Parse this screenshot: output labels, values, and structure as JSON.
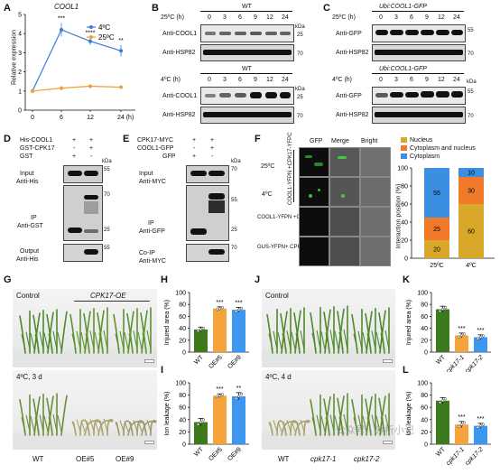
{
  "panels": {
    "A": {
      "label": "A",
      "gene": "COOL1",
      "ylabel": "Relative expression",
      "xticks": [
        "0",
        "6",
        "12",
        "24 (h)"
      ],
      "yticks": [
        "0",
        "1",
        "2",
        "3",
        "4",
        "5"
      ],
      "legend": [
        "4ºC",
        "25ºC"
      ],
      "sig": [
        "***",
        "****",
        "**"
      ],
      "colors": {
        "cold": "#3a7bd5",
        "warm": "#f0a032"
      }
    },
    "B": {
      "label": "B",
      "top": {
        "title": "WT",
        "temp": "25ºC (h)",
        "times": [
          "0",
          "3",
          "6",
          "9",
          "12",
          "24"
        ],
        "row1": "Anti-COOL1",
        "row2": "Anti-HSP82",
        "kda": "kDa",
        "m1": "25",
        "m2": "70"
      },
      "bottom": {
        "title": "WT",
        "temp": "4ºC (h)",
        "times": [
          "0",
          "3",
          "6",
          "9",
          "12",
          "24"
        ],
        "row1": "Anti-COOL1",
        "row2": "Anti-HSP82",
        "kda": "kDa",
        "m1": "25",
        "m2": "70"
      }
    },
    "C": {
      "label": "C",
      "top": {
        "title": "Ubi:COOL1-GFP",
        "temp": "25ºC (h)",
        "times": [
          "0",
          "3",
          "6",
          "9",
          "12",
          "24"
        ],
        "row1": "Anti-GFP",
        "row2": "Anti-HSP82",
        "m1": "55",
        "m2": "70"
      },
      "bottom": {
        "title": "Ubi:COOL1-GFP",
        "temp": "4ºC (h)",
        "times": [
          "0",
          "3",
          "6",
          "9",
          "12",
          "24"
        ],
        "row1": "Anti-GFP",
        "row2": "Anti-HSP82",
        "kda": "kDa",
        "m1": "55",
        "m2": "70"
      }
    },
    "D": {
      "label": "D",
      "rows": [
        {
          "name": "His-COOL1",
          "marks": [
            "+",
            "+"
          ]
        },
        {
          "name": "GST-CPK17",
          "marks": [
            "-",
            "+"
          ]
        },
        {
          "name": "GST",
          "marks": [
            "+",
            "-"
          ]
        }
      ],
      "kda": "kDa",
      "input": [
        "Input",
        "Anti-His"
      ],
      "ip": [
        "IP",
        "Anti-GST"
      ],
      "output": [
        "Output",
        "Anti-His"
      ],
      "markers": [
        "55",
        "70",
        "25",
        "55"
      ]
    },
    "E": {
      "label": "E",
      "rows": [
        {
          "name": "CPK17-MYC",
          "marks": [
            "+",
            "+"
          ]
        },
        {
          "name": "COOL1-GFP",
          "marks": [
            "-",
            "+"
          ]
        },
        {
          "name": "GFP",
          "marks": [
            "+",
            "-"
          ]
        }
      ],
      "kda": "kDa",
      "input": [
        "Input",
        "Anti-MYC"
      ],
      "ip": [
        "IP",
        "Anti-GFP"
      ],
      "coip": [
        "Co-IP",
        "Anti-MYC"
      ],
      "markers": [
        "70",
        "55",
        "25",
        "70"
      ]
    },
    "F": {
      "label": "F",
      "cols": [
        "GFP",
        "Merge",
        "Bright"
      ],
      "temp_top": "25ºC",
      "temp_bottom": "4ºC",
      "construct1": "COOL1-YFPN +CPK17-YFPC",
      "construct2": "COOL1-YFPN +GUS-YFPC",
      "construct3": "GUS-YFPN+ CPK17-YFPC",
      "legend": [
        "Nucleus",
        "Cytoplasm and nucleus",
        "Cytoplasm"
      ],
      "ylabel": "Interaction position (%)",
      "yticks": [
        "0",
        "20",
        "40",
        "60",
        "80",
        "100"
      ],
      "xcats": [
        "25ºC",
        "4ºC"
      ],
      "colors": {
        "nucleus": "#d9a82b",
        "both": "#f07a2a",
        "cyto": "#3a8fe0"
      }
    },
    "G": {
      "label": "G",
      "control": "Control",
      "treat": "4ºC, 3 d",
      "oe": "CPK17-OE",
      "xlabels": [
        "WT",
        "OE#5",
        "OE#9"
      ]
    },
    "H": {
      "label": "H",
      "ylabel": "Injured area (%)",
      "yticks": [
        "0",
        "20",
        "40",
        "60",
        "80",
        "100"
      ],
      "xlabels": [
        "WT",
        "OE#5",
        "OE#9"
      ],
      "sig": [
        "***",
        "***"
      ]
    },
    "I": {
      "label": "I",
      "ylabel": "Ion leakage (%)",
      "yticks": [
        "0",
        "20",
        "40",
        "60",
        "80",
        "100"
      ],
      "xlabels": [
        "WT",
        "OE#5",
        "OE#9"
      ],
      "sig": [
        "***",
        "**"
      ]
    },
    "J": {
      "label": "J",
      "control": "Control",
      "treat": "4ºC, 4 d",
      "xlabels": [
        "WT",
        "cpk17-1",
        "cpk17-2"
      ]
    },
    "K": {
      "label": "K",
      "ylabel": "Injured area (%)",
      "yticks": [
        "0",
        "20",
        "40",
        "60",
        "80",
        "100"
      ],
      "xlabels": [
        "WT",
        "cpk17-1",
        "cpk17-2"
      ],
      "sig": [
        "***",
        "***"
      ]
    },
    "L": {
      "label": "L",
      "ylabel": "Ion leakage (%)",
      "yticks": [
        "0",
        "20",
        "40",
        "60",
        "80",
        "100"
      ],
      "xlabels": [
        "WT",
        "cpk17-1",
        "cpk17-2"
      ],
      "sig": [
        "***",
        "***"
      ]
    }
  },
  "watermark": "公众号 · 分析小记",
  "chart_data": [
    {
      "panel": "A",
      "type": "line",
      "ylabel": "Relative expression",
      "x": [
        0,
        6,
        12,
        24
      ],
      "ylim": [
        0,
        5
      ],
      "series": [
        {
          "name": "4ºC",
          "values": [
            1.0,
            4.2,
            3.6,
            3.1
          ],
          "errors": [
            0.05,
            0.35,
            0.2,
            0.3
          ],
          "color": "#3a7bd5"
        },
        {
          "name": "25ºC",
          "values": [
            1.0,
            1.15,
            1.25,
            1.2
          ],
          "errors": [
            0.05,
            0.1,
            0.1,
            0.08
          ],
          "color": "#f0a032"
        }
      ]
    },
    {
      "panel": "F",
      "type": "bar",
      "stacked": true,
      "ylabel": "Interaction position (%)",
      "categories": [
        "25ºC",
        "4ºC"
      ],
      "ylim": [
        0,
        100
      ],
      "series": [
        {
          "name": "Nucleus",
          "values": [
            20,
            60
          ],
          "color": "#d9a82b"
        },
        {
          "name": "Cytoplasm and nucleus",
          "values": [
            25,
            30
          ],
          "color": "#f07a2a"
        },
        {
          "name": "Cytoplasm",
          "values": [
            55,
            10
          ],
          "color": "#3a8fe0"
        }
      ],
      "data_labels": [
        [
          "20",
          "25",
          "55"
        ],
        [
          "60",
          "30",
          "10"
        ]
      ]
    },
    {
      "panel": "H",
      "type": "bar",
      "ylabel": "Injured area (%)",
      "categories": [
        "WT",
        "OE#5",
        "OE#9"
      ],
      "values": [
        38,
        73,
        71
      ],
      "errors": [
        4,
        3,
        4
      ],
      "colors": [
        "#3d7a1e",
        "#f4a43a",
        "#3d97f0"
      ],
      "ylim": [
        0,
        100
      ]
    },
    {
      "panel": "I",
      "type": "bar",
      "ylabel": "Ion leakage (%)",
      "categories": [
        "WT",
        "OE#5",
        "OE#9"
      ],
      "values": [
        36,
        79,
        78
      ],
      "errors": [
        6,
        3,
        6
      ],
      "colors": [
        "#3d7a1e",
        "#f4a43a",
        "#3d97f0"
      ],
      "ylim": [
        0,
        100
      ]
    },
    {
      "panel": "K",
      "type": "bar",
      "ylabel": "Injured area (%)",
      "categories": [
        "WT",
        "cpk17-1",
        "cpk17-2"
      ],
      "values": [
        72,
        28,
        25
      ],
      "errors": [
        5,
        4,
        4
      ],
      "colors": [
        "#3d7a1e",
        "#f4a43a",
        "#3d97f0"
      ],
      "ylim": [
        0,
        100
      ]
    },
    {
      "panel": "L",
      "type": "bar",
      "ylabel": "Ion leakage (%)",
      "categories": [
        "WT",
        "cpk17-1",
        "cpk17-2"
      ],
      "values": [
        71,
        32,
        30
      ],
      "errors": [
        5,
        5,
        4
      ],
      "colors": [
        "#3d7a1e",
        "#f4a43a",
        "#3d97f0"
      ],
      "ylim": [
        0,
        100
      ]
    }
  ]
}
